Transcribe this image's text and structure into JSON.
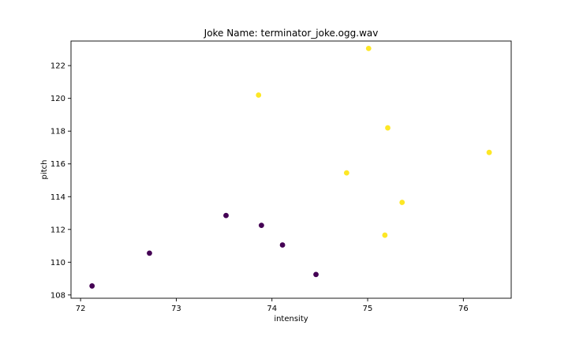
{
  "chart_data": {
    "type": "scatter",
    "title": "Joke Name: terminator_joke.ogg.wav",
    "xlabel": "intensity",
    "ylabel": "pitch",
    "xlim": [
      71.9,
      76.5
    ],
    "ylim": [
      107.8,
      123.5
    ],
    "xticks": [
      72,
      73,
      74,
      75,
      76
    ],
    "yticks": [
      108,
      110,
      112,
      114,
      116,
      118,
      120,
      122
    ],
    "grid": false,
    "legend": "none",
    "colors": {
      "cluster_0": "#440154",
      "cluster_1": "#fde725"
    },
    "points": [
      {
        "x": 72.12,
        "y": 108.55,
        "cluster": 0
      },
      {
        "x": 72.72,
        "y": 110.55,
        "cluster": 0
      },
      {
        "x": 73.52,
        "y": 112.85,
        "cluster": 0
      },
      {
        "x": 73.89,
        "y": 112.25,
        "cluster": 0
      },
      {
        "x": 74.11,
        "y": 111.05,
        "cluster": 0
      },
      {
        "x": 74.46,
        "y": 109.25,
        "cluster": 0
      },
      {
        "x": 73.86,
        "y": 120.2,
        "cluster": 1
      },
      {
        "x": 74.78,
        "y": 115.45,
        "cluster": 1
      },
      {
        "x": 75.01,
        "y": 123.05,
        "cluster": 1
      },
      {
        "x": 75.18,
        "y": 111.65,
        "cluster": 1
      },
      {
        "x": 75.21,
        "y": 118.2,
        "cluster": 1
      },
      {
        "x": 75.36,
        "y": 113.65,
        "cluster": 1
      },
      {
        "x": 76.27,
        "y": 116.7,
        "cluster": 1
      }
    ]
  }
}
